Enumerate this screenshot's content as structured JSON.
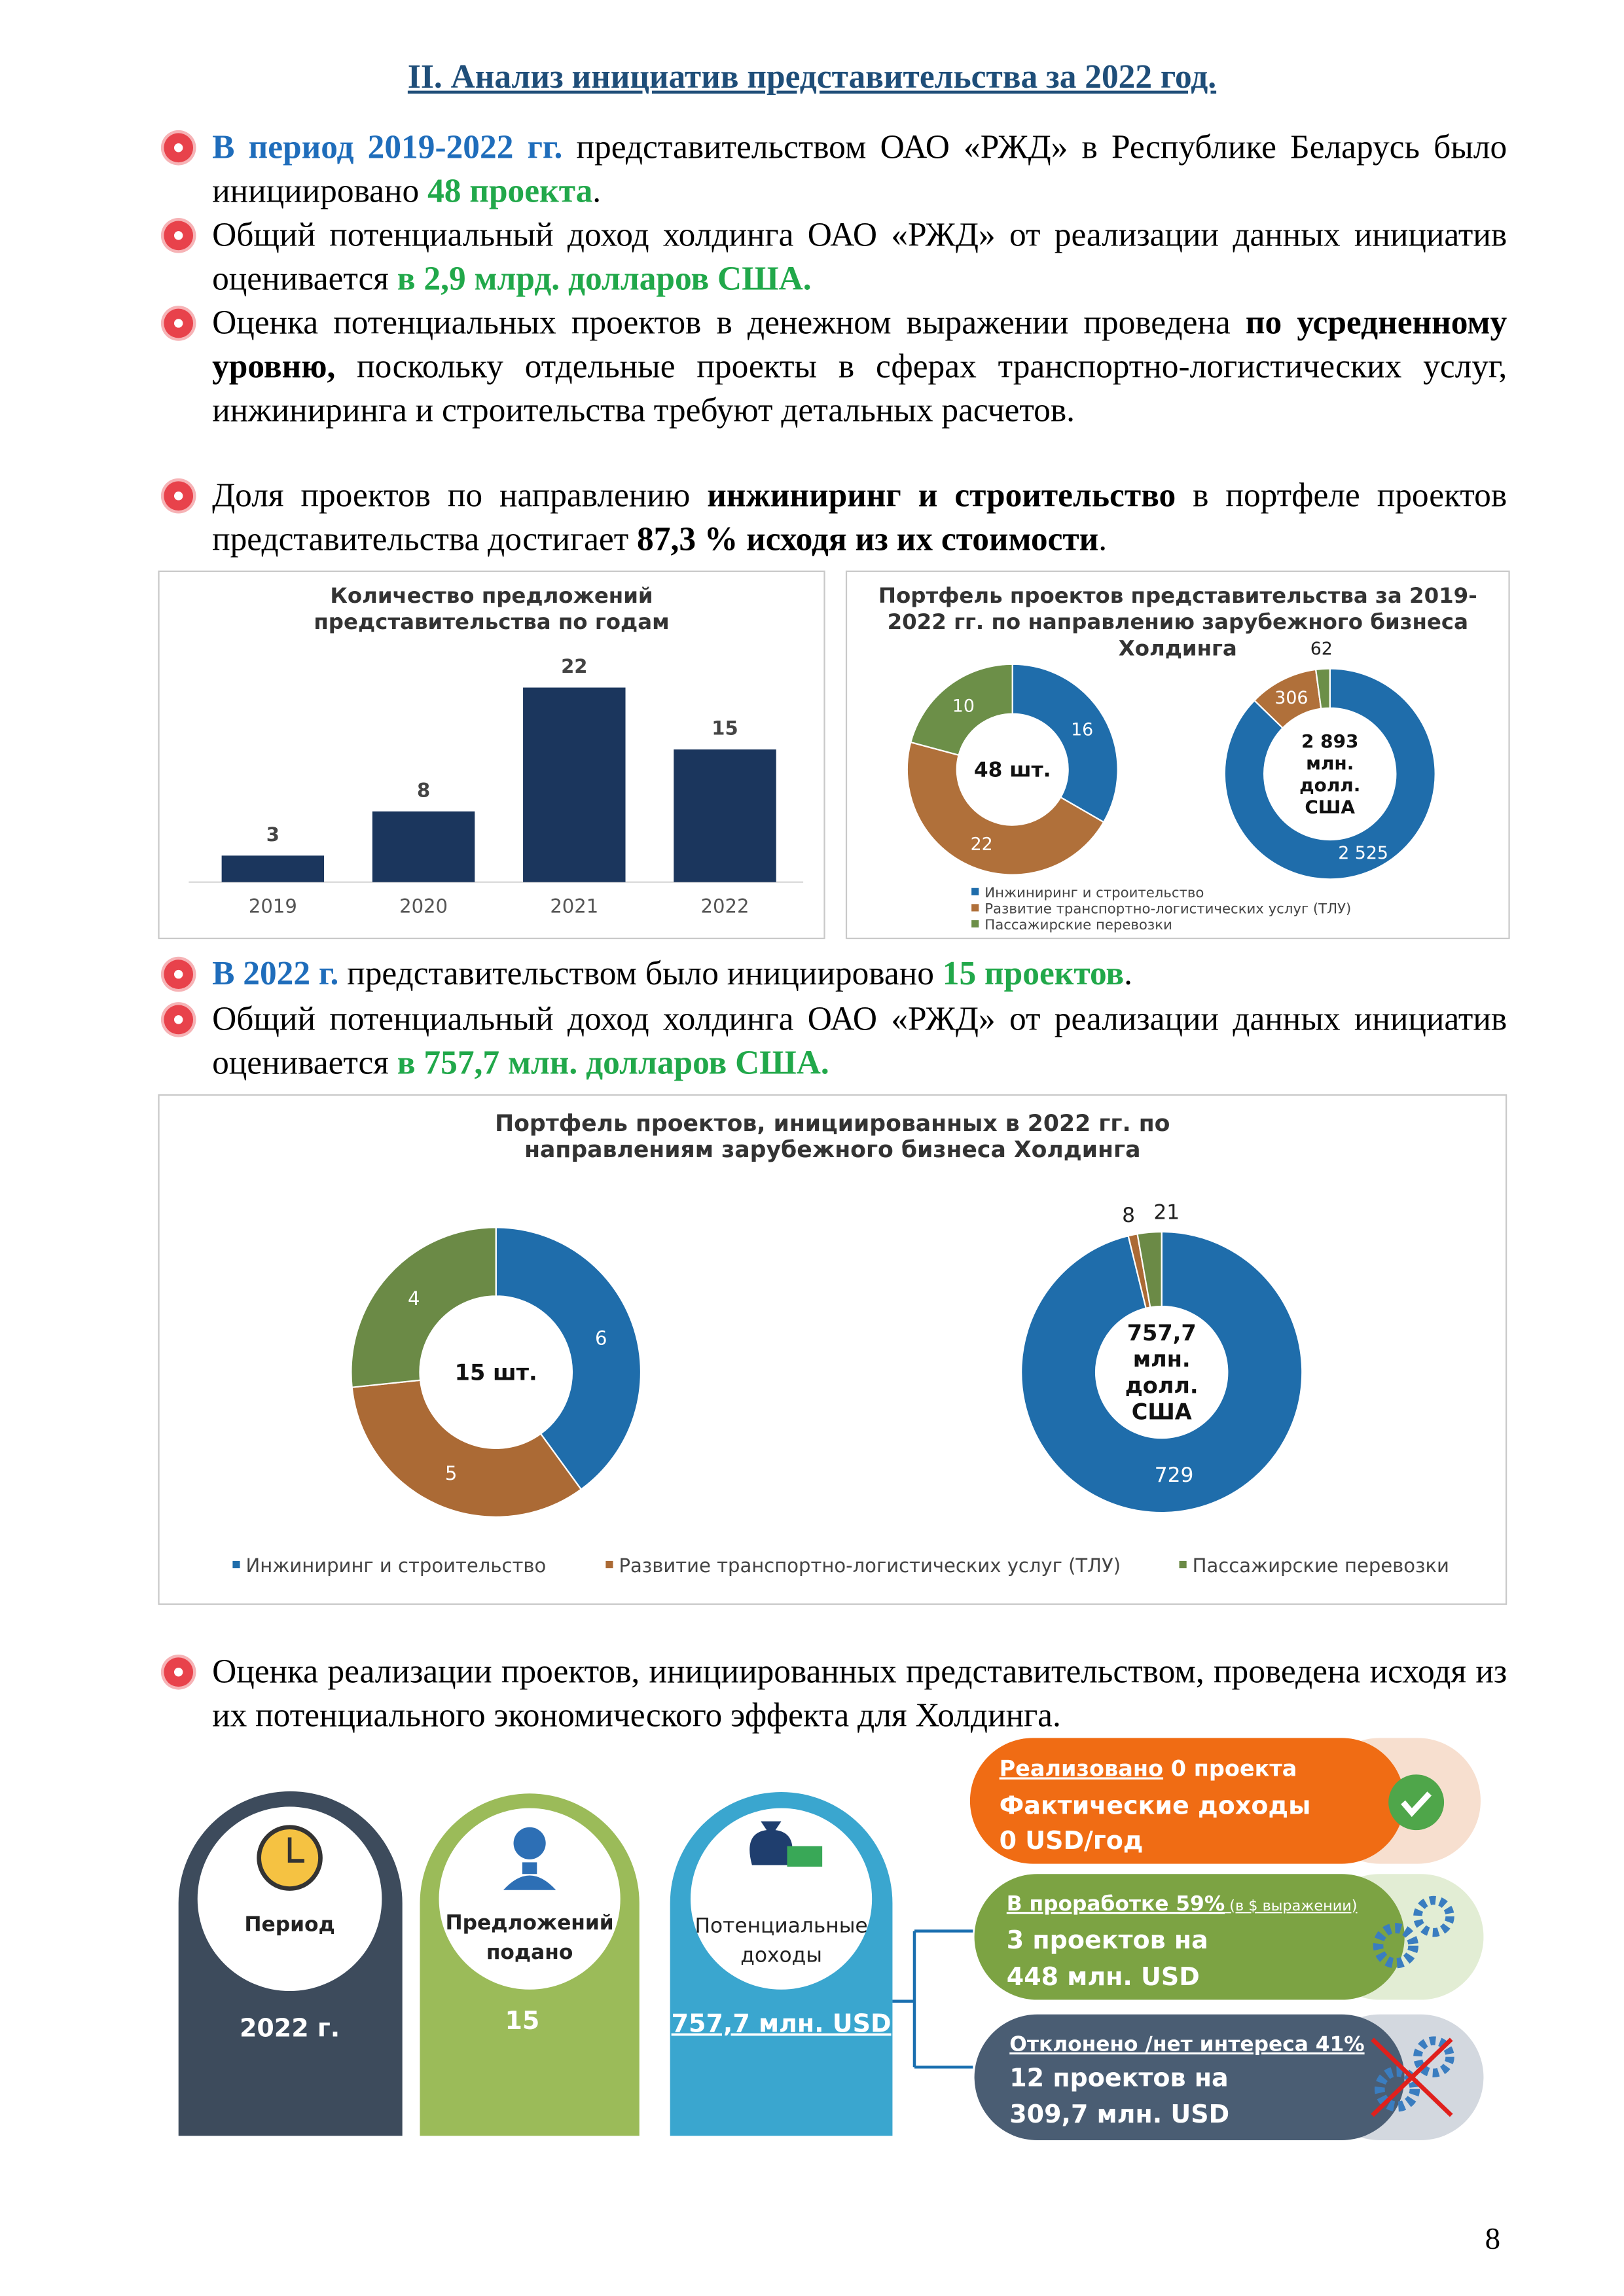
{
  "title": "II. Анализ инициатив представительства за 2022 год.",
  "bullets": [
    [
      "В период 2019-2022 гг.",
      " представительством ОАО «РЖД» в Республике Беларусь было инициировано ",
      "48 проекта",
      "."
    ],
    [
      "Общий потенциальный доход холдинга ОАО «РЖД» от реализации данных инициатив оценивается ",
      "в 2,9 млрд. долларов США."
    ],
    [
      "Оценка потенциальных проектов в денежном выражении проведена ",
      "по усредненному уровню,",
      " поскольку отдельные проекты в сферах транспортно-логистических услуг, инжиниринга и строительства требуют детальных расчетов."
    ],
    [
      "Доля проектов по направлению ",
      "инжиниринг и строительство",
      " в портфеле проектов представительства достигает ",
      "87,3 % исходя из их стоимости",
      "."
    ],
    [
      "В 2022 г.",
      " представительством было инициировано ",
      "15 проектов",
      "."
    ],
    [
      "Общий потенциальный доход холдинга ОАО «РЖД» от реализации данных инициатив оценивается ",
      "в 757,7 млн. долларов США."
    ],
    [
      "Оценка реализации проектов, инициированных представительством, проведена исходя из их потенциального экономического эффекта для Холдинга."
    ]
  ],
  "chart_data": [
    {
      "type": "bar",
      "title": "Количество предложений представительства по годам",
      "categories": [
        "2019",
        "2020",
        "2021",
        "2022"
      ],
      "values": [
        3,
        8,
        22,
        15
      ],
      "color": "#1b365d"
    },
    {
      "type": "donut",
      "title": "Портфель проектов представительства за 2019-2022 гг. по направлению зарубежного бизнеса Холдинга",
      "categories": [
        "Инжиниринг и строительство",
        "Развитие транспортно-логистических услуг (ТЛУ)",
        "Пассажирские перевозки"
      ],
      "colors": [
        "#1f6dab",
        "#b0703a",
        "#6c8f48"
      ],
      "pies": [
        {
          "center_label": [
            "48 шт."
          ],
          "values": [
            16,
            22,
            10
          ]
        },
        {
          "center_label": [
            "2 893",
            "млн.",
            "долл.",
            "США"
          ],
          "values": [
            2525,
            306,
            62
          ],
          "value_labels": [
            "2 525",
            "306",
            "62"
          ]
        }
      ]
    },
    {
      "type": "donut",
      "title": "Портфель проектов, инициированных в 2022 гг. по направлениям зарубежного бизнеса Холдинга",
      "categories": [
        "Инжиниринг и строительство",
        "Развитие транспортно-логистических услуг (ТЛУ)",
        "Пассажирские перевозки"
      ],
      "colors": [
        "#1f6dab",
        "#ab6a35",
        "#6b8a46"
      ],
      "pies": [
        {
          "center_label": [
            "15 шт."
          ],
          "values": [
            6,
            5,
            4
          ]
        },
        {
          "center_label": [
            "757,7",
            "млн.",
            "долл.",
            "США"
          ],
          "values": [
            729,
            8,
            21
          ]
        }
      ]
    }
  ],
  "infographic": {
    "columns": [
      {
        "label": [
          "Период"
        ],
        "value": "2022 г."
      },
      {
        "label": [
          "Предложений",
          "подано"
        ],
        "value": "15"
      },
      {
        "label": [
          "Потенциальные",
          "доходы"
        ],
        "value": "757,7 млн. USD"
      }
    ],
    "cards": [
      {
        "lines": [
          [
            "Реализовано",
            " 0 проекта"
          ],
          [
            "Фактические доходы"
          ],
          [
            "0 USD/год"
          ]
        ]
      },
      {
        "lines": [
          [
            "В проработке 59%",
            " (в $ выражении)"
          ],
          [
            "3 проектов на"
          ],
          [
            "448 млн. USD"
          ]
        ]
      },
      {
        "lines": [
          [
            "Отклонено /нет интереса 41%"
          ],
          [
            "12 проектов на"
          ],
          [
            "309,7 млн. USD"
          ]
        ]
      }
    ]
  },
  "page_number": "8"
}
